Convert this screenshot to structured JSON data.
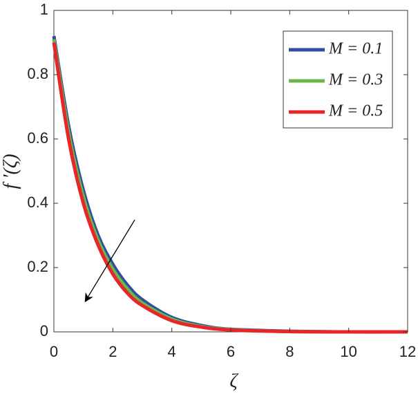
{
  "chart_data": {
    "type": "line",
    "x_label": "ζ",
    "y_label": "f ′(ζ)",
    "x": [
      0,
      0.5,
      1,
      1.5,
      2,
      2.5,
      3,
      4,
      5,
      6,
      8,
      10,
      12
    ],
    "series": [
      {
        "name": "M = 0.1",
        "color": "#2f4f9f",
        "values": [
          0.92,
          0.64,
          0.44,
          0.3,
          0.21,
          0.145,
          0.1,
          0.045,
          0.02,
          0.008,
          0.002,
          0,
          0
        ]
      },
      {
        "name": "M = 0.3",
        "color": "#6ab84a",
        "values": [
          0.91,
          0.62,
          0.42,
          0.285,
          0.195,
          0.133,
          0.09,
          0.04,
          0.017,
          0.007,
          0.001,
          0,
          0
        ]
      },
      {
        "name": "M = 0.5",
        "color": "#e8262a",
        "values": [
          0.9,
          0.6,
          0.4,
          0.27,
          0.18,
          0.12,
          0.082,
          0.035,
          0.015,
          0.006,
          0.001,
          0,
          0
        ]
      }
    ],
    "xlim": [
      0,
      12
    ],
    "xticks": [
      0,
      2,
      4,
      6,
      8,
      10,
      12
    ],
    "ylim": [
      0,
      1
    ],
    "yticks": [
      0,
      0.2,
      0.4,
      0.6,
      0.8,
      1
    ],
    "legend": "upper right"
  }
}
